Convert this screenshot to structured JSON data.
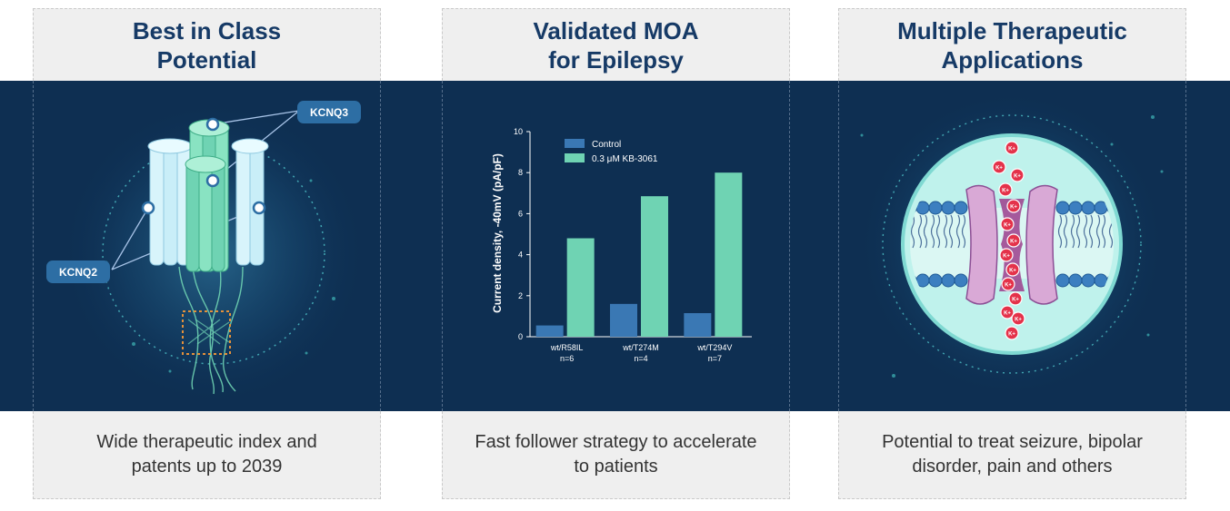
{
  "cards": [
    {
      "title_lines": [
        "Best in Class",
        "Potential"
      ],
      "subtitle_lines": [
        "Wide therapeutic index and",
        "patents up to 2039"
      ],
      "labels": {
        "top": "KCNQ3",
        "left": "KCNQ2"
      }
    },
    {
      "title_lines": [
        "Validated MOA",
        "for Epilepsy"
      ],
      "subtitle_lines": [
        "Fast follower strategy to accelerate",
        "to patients"
      ]
    },
    {
      "title_lines": [
        "Multiple Therapeutic",
        "Applications"
      ],
      "subtitle_lines": [
        "Potential to treat seizure, bipolar",
        "disorder, pain and others"
      ],
      "ion_label": "K+"
    }
  ],
  "chart_data": {
    "type": "bar",
    "categories": [
      "wt/R58IL",
      "wt/T274M",
      "wt/T294V"
    ],
    "category_sublabels": [
      "n=6",
      "n=4",
      "n=7"
    ],
    "series": [
      {
        "name": "Control",
        "values": [
          0.55,
          1.6,
          1.15
        ],
        "color": "#3a78b4"
      },
      {
        "name": "0.3 μM KB-3061",
        "values": [
          4.8,
          6.85,
          8.0
        ],
        "color": "#6fd3b3"
      }
    ],
    "ylabel": "Current density, -40mV (pA/pF)",
    "xlabel": "",
    "ylim": [
      0,
      10
    ],
    "yticks": [
      0,
      2,
      4,
      6,
      8,
      10
    ],
    "legend_position": "top-left",
    "grid": false
  },
  "colors": {
    "navy_band": "#0e2f52",
    "title_blue": "#163a66",
    "panel_gray": "#efefef"
  }
}
